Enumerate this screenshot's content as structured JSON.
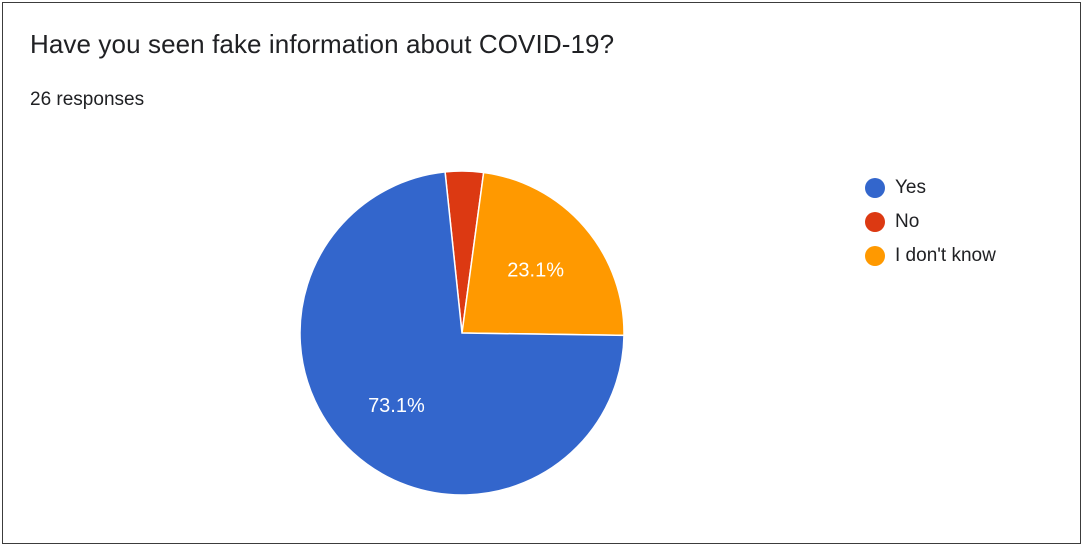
{
  "chart_data": {
    "type": "pie",
    "title": "Have you seen fake information about COVID-19?",
    "subtitle": "26 responses",
    "categories": [
      "Yes",
      "No",
      "I don't know"
    ],
    "values": [
      73.1,
      3.8,
      23.1
    ],
    "data_labels": [
      "73.1%",
      "",
      "23.1%"
    ],
    "colors": [
      "#3366cc",
      "#dc3912",
      "#ff9900"
    ],
    "legend_placement": "right"
  }
}
